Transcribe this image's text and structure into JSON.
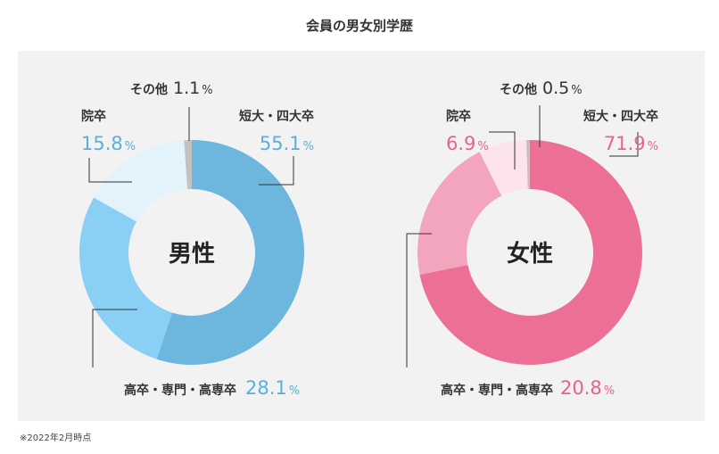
{
  "title": "会員の男女別学歴",
  "footnote": "※2022年2月時点",
  "chart_data": [
    {
      "type": "pie",
      "center_label": "男性",
      "labels": [
        "短大・四大卒",
        "高卒・専門・高専卒",
        "院卒",
        "その他"
      ],
      "values": [
        55.1,
        28.1,
        15.8,
        1.1
      ],
      "value_text": [
        "55.1",
        "28.1",
        "15.8",
        "1.1"
      ],
      "unit": "%",
      "colors": [
        "#6db6de",
        "#8ad0f5",
        "#e2f3fc",
        "#c2c2c2"
      ],
      "label_color": "#5aafdb"
    },
    {
      "type": "pie",
      "center_label": "女性",
      "labels": [
        "短大・四大卒",
        "高卒・専門・高専卒",
        "院卒",
        "その他"
      ],
      "values": [
        71.9,
        20.8,
        6.9,
        0.5
      ],
      "value_text": [
        "71.9",
        "20.8",
        "6.9",
        "0.5"
      ],
      "unit": "%",
      "colors": [
        "#ec7096",
        "#f2a5bc",
        "#fde3ec",
        "#c2c2c2"
      ],
      "label_color": "#e9628e"
    }
  ]
}
